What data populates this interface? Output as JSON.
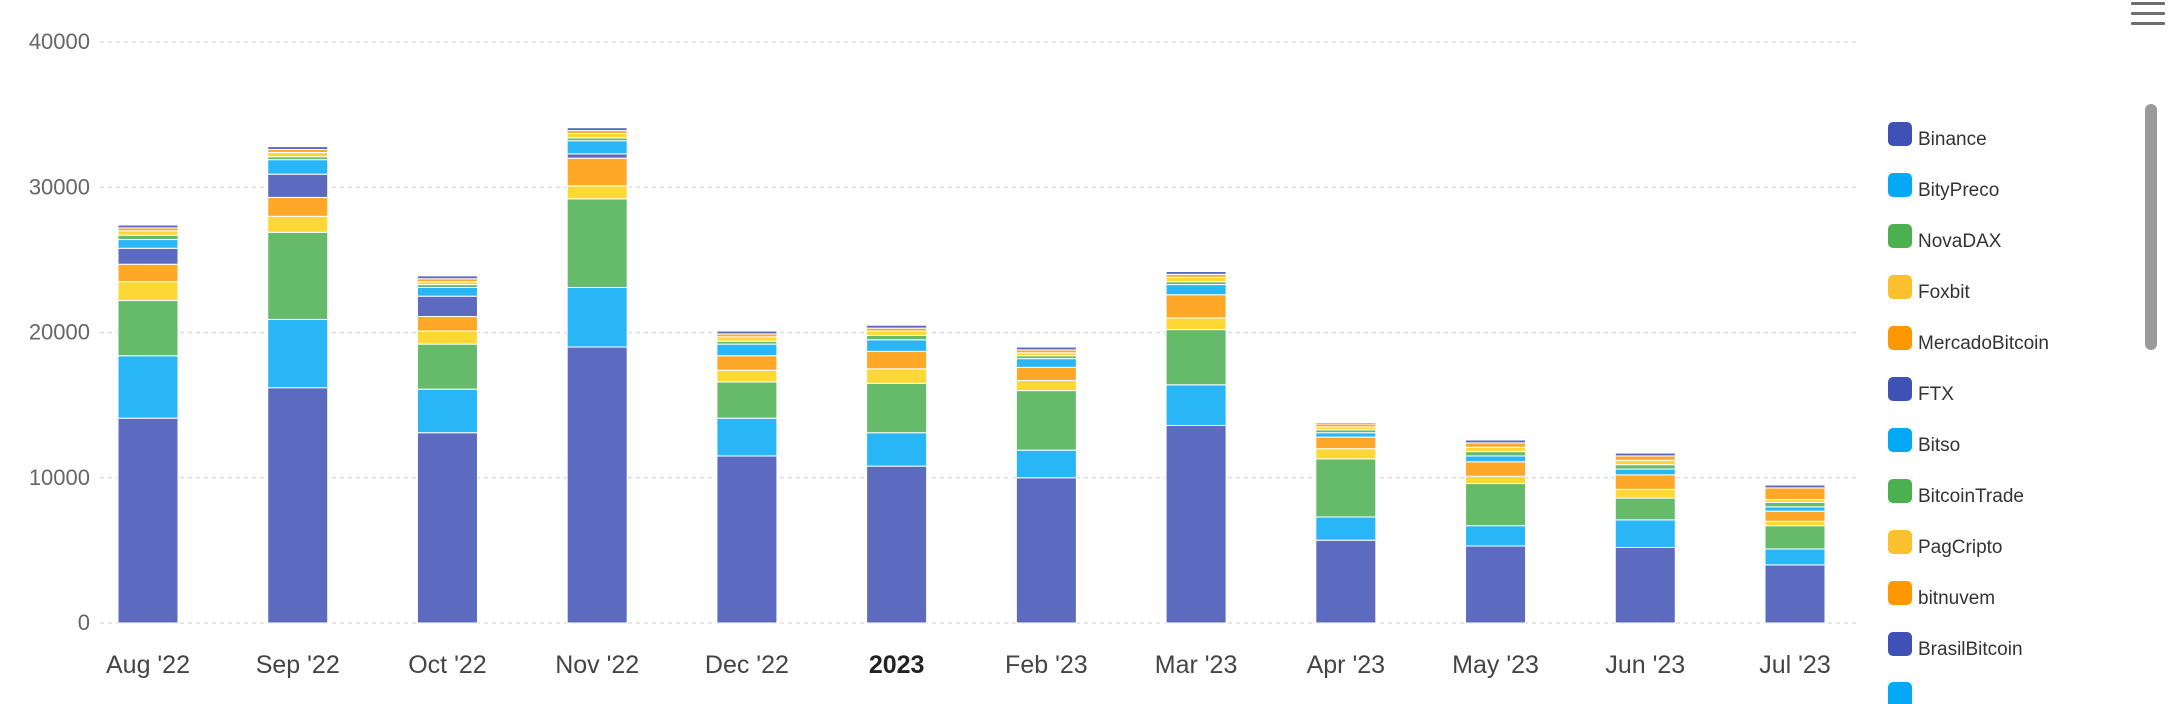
{
  "chart_data": {
    "type": "bar",
    "stacked": true,
    "categories": [
      "Aug '22",
      "Sep '22",
      "Oct '22",
      "Nov '22",
      "Dec '22",
      "2023",
      "Feb '23",
      "Mar '23",
      "Apr '23",
      "May '23",
      "Jun '23",
      "Jul '23"
    ],
    "highlighted_category": "2023",
    "ylim": [
      0,
      40000
    ],
    "yticks": [
      "0",
      "10000",
      "20000",
      "30000",
      "40000"
    ],
    "grid": true,
    "legend_position": "right",
    "series": [
      {
        "name": "Binance",
        "color": "#5c6bc0",
        "values": [
          14100,
          16200,
          13100,
          19000,
          11500,
          10800,
          10000,
          13600,
          5700,
          5300,
          5200,
          4000
        ]
      },
      {
        "name": "BityPreco",
        "color": "#29b6f6",
        "values": [
          4300,
          4700,
          3000,
          4100,
          2600,
          2300,
          1900,
          2800,
          1600,
          1400,
          1900,
          1100
        ]
      },
      {
        "name": "NovaDAX",
        "color": "#66bb6a",
        "values": [
          3800,
          6000,
          3100,
          6100,
          2500,
          3400,
          4100,
          3800,
          4000,
          2900,
          1500,
          1600
        ]
      },
      {
        "name": "Foxbit",
        "color": "#fdd835",
        "values": [
          1300,
          1100,
          900,
          900,
          800,
          1000,
          700,
          800,
          700,
          500,
          600,
          300
        ]
      },
      {
        "name": "MercadoBitcoin",
        "color": "#ffa726",
        "values": [
          1200,
          1300,
          1000,
          1900,
          1000,
          1200,
          900,
          1600,
          800,
          1000,
          1000,
          700
        ]
      },
      {
        "name": "FTX",
        "color": "#5c6bc0",
        "values": [
          1100,
          1600,
          1400,
          300,
          0,
          0,
          0,
          0,
          0,
          0,
          0,
          0
        ]
      },
      {
        "name": "Bitso",
        "color": "#29b6f6",
        "values": [
          600,
          1000,
          600,
          900,
          800,
          800,
          600,
          700,
          300,
          400,
          400,
          300
        ]
      },
      {
        "name": "BitcoinTrade",
        "color": "#66bb6a",
        "values": [
          300,
          200,
          200,
          200,
          200,
          300,
          200,
          200,
          200,
          300,
          300,
          300
        ]
      },
      {
        "name": "PagCripto",
        "color": "#fdd835",
        "values": [
          300,
          300,
          200,
          300,
          300,
          300,
          200,
          300,
          200,
          300,
          300,
          200
        ]
      },
      {
        "name": "bitnuvem",
        "color": "#ffa726",
        "values": [
          200,
          200,
          200,
          200,
          200,
          200,
          200,
          200,
          200,
          300,
          300,
          800
        ]
      },
      {
        "name": "BrasilBitcoin",
        "color": "#5c6bc0",
        "values": [
          200,
          200,
          200,
          200,
          200,
          200,
          200,
          200,
          100,
          200,
          200,
          200
        ]
      }
    ]
  },
  "legend": {
    "items": [
      {
        "name": "Binance",
        "color": "#3f51b5"
      },
      {
        "name": "BityPreco",
        "color": "#03a9f4"
      },
      {
        "name": "NovaDAX",
        "color": "#4caf50"
      },
      {
        "name": "Foxbit",
        "color": "#fbc02d"
      },
      {
        "name": "MercadoBitcoin",
        "color": "#ff9800"
      },
      {
        "name": "FTX",
        "color": "#3f51b5"
      },
      {
        "name": "Bitso",
        "color": "#03a9f4"
      },
      {
        "name": "BitcoinTrade",
        "color": "#4caf50"
      },
      {
        "name": "PagCripto",
        "color": "#fbc02d"
      },
      {
        "name": "bitnuvem",
        "color": "#ff9800"
      },
      {
        "name": "BrasilBitcoin",
        "color": "#3f51b5"
      }
    ],
    "partial_item_color": "#03a9f4"
  },
  "toolbar": {
    "menu_icon": "hamburger-menu-icon"
  },
  "colors": {
    "grid": "#dddddd",
    "tick_text": "#666666"
  }
}
